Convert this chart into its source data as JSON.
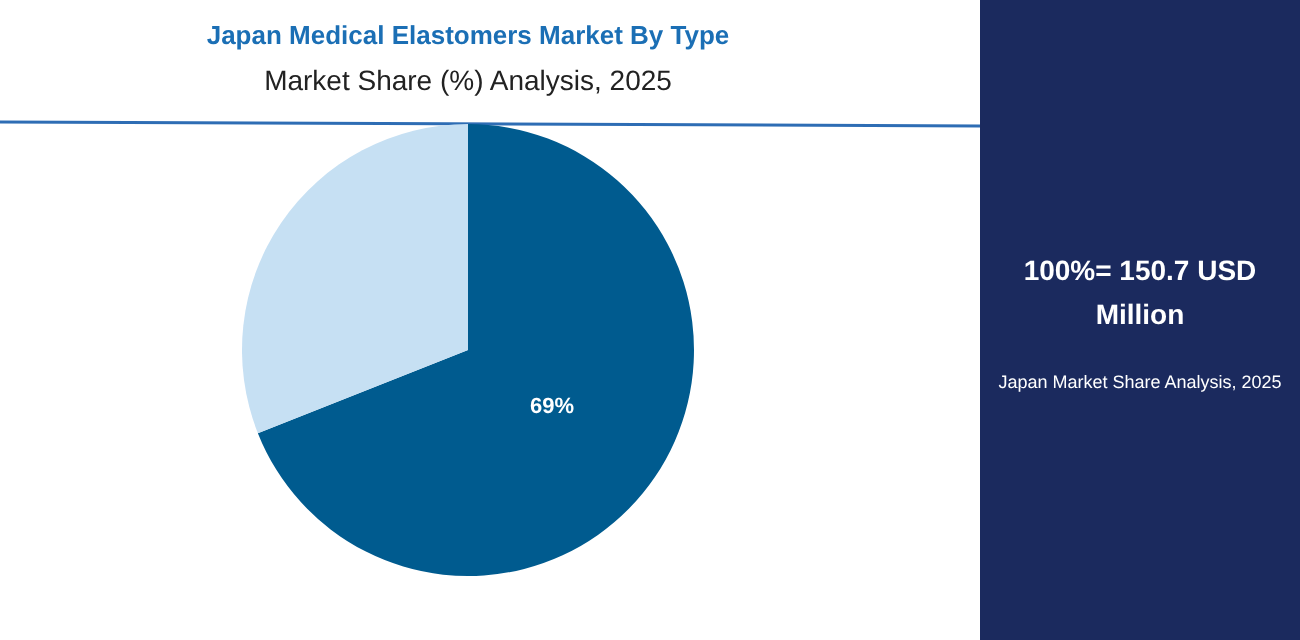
{
  "chart_data": {
    "type": "pie",
    "title": "Japan Medical Elastomers Market By Type",
    "subtitle": "Market Share (%) Analysis, 2025",
    "categories": [
      null,
      null
    ],
    "values": [
      69,
      31
    ],
    "colors": [
      "#005b8f",
      "#c6e0f3"
    ],
    "value_labels": [
      "69%",
      null
    ],
    "annotations": [
      "100%= 150.7 USD Million",
      "Japan Market Share Analysis, 2025"
    ]
  }
}
